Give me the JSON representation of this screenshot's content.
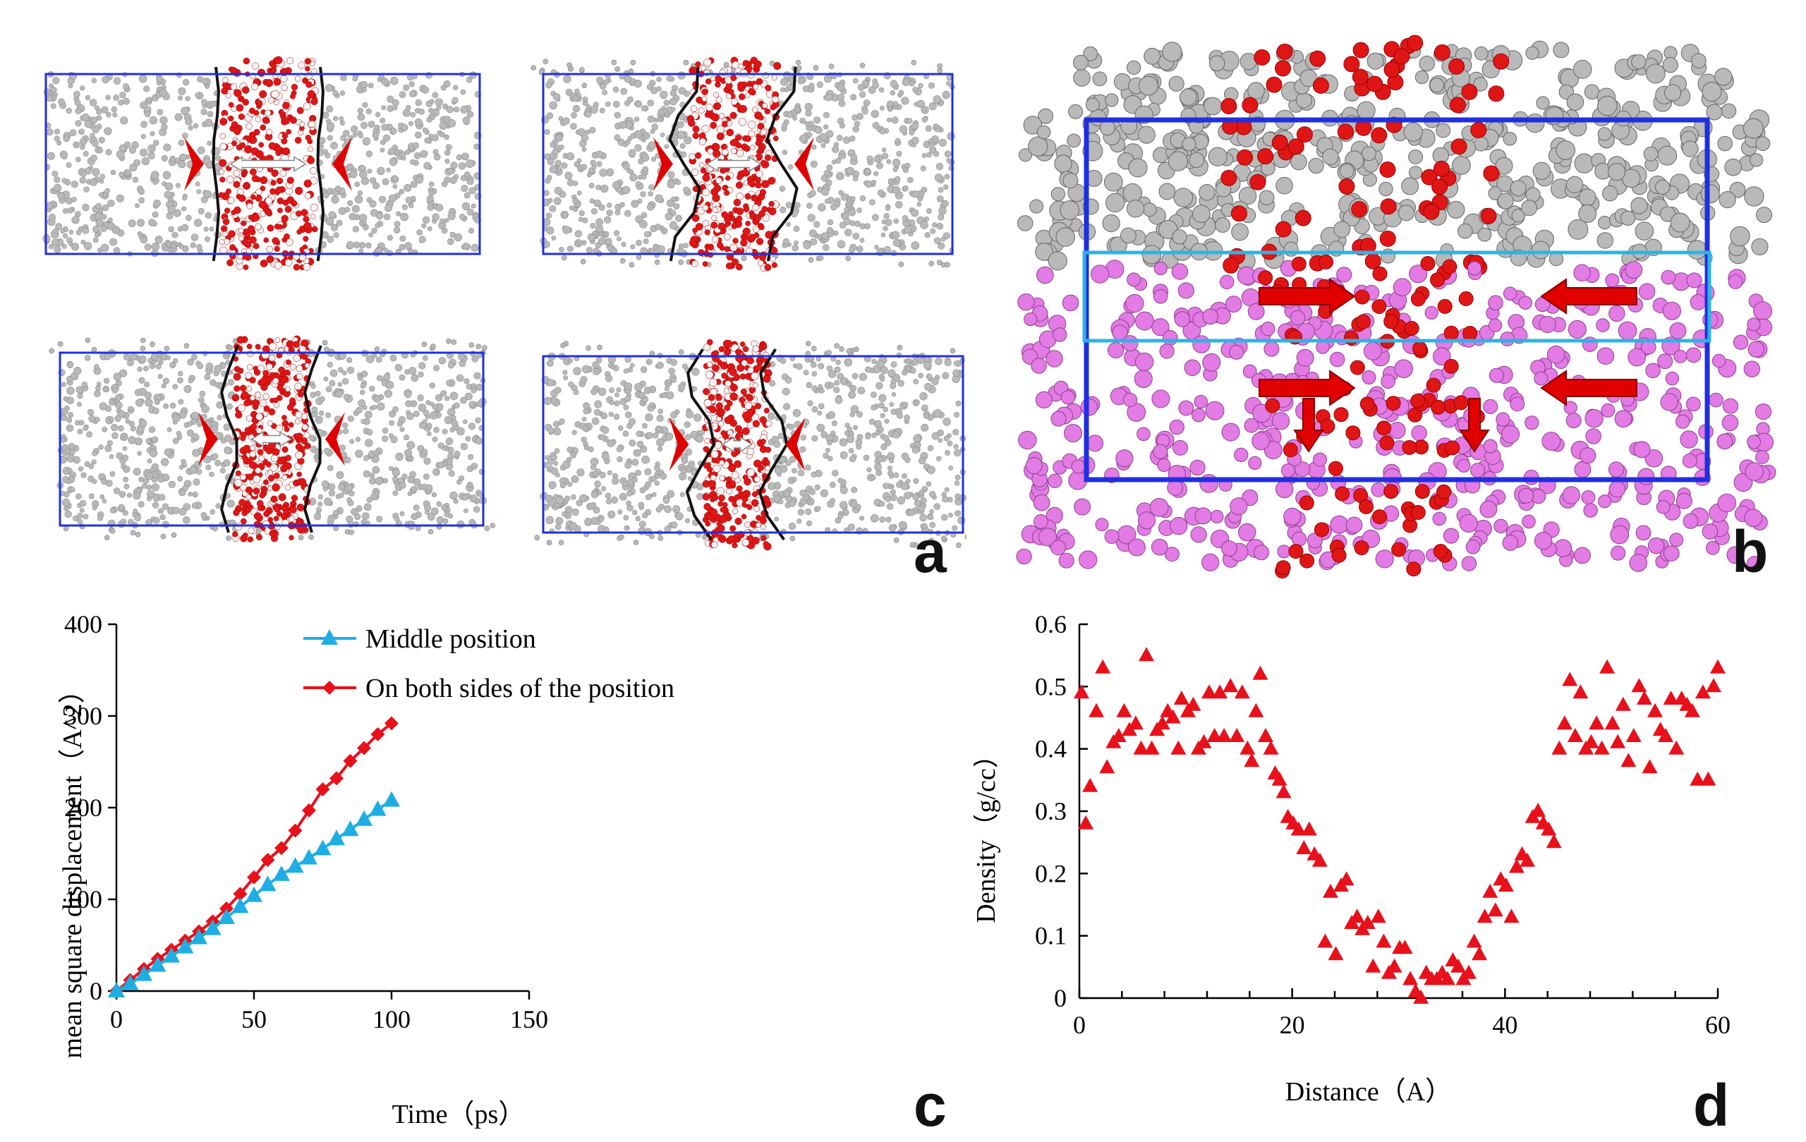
{
  "panels": {
    "a": {
      "label": "a"
    },
    "b": {
      "label": "b"
    },
    "c": {
      "label": "c"
    },
    "d": {
      "label": "d"
    }
  },
  "colors": {
    "box_blue": "#1f2fe0",
    "slab_cyan": "#2bb4e6",
    "atom_gray": "#b9b9b9",
    "atom_red": "#e01616",
    "atom_pink": "#e27be3",
    "arrow_red": "#e00000",
    "series_middle": "#1eaee3",
    "series_sides": "#e8101a"
  },
  "chart_data": [
    {
      "type": "line",
      "panel": "c",
      "xlabel": "Time（ps）",
      "ylabel": "mean square displacement（A^2）",
      "xlim": [
        0,
        150
      ],
      "ylim": [
        0,
        400
      ],
      "xticks": [
        0,
        50,
        100,
        150
      ],
      "yticks": [
        0,
        100,
        200,
        300,
        400
      ],
      "legend_position": "top-left",
      "series": [
        {
          "name": "Middle position",
          "marker": "triangle",
          "x": [
            0,
            5,
            10,
            15,
            20,
            25,
            30,
            35,
            40,
            45,
            50,
            55,
            60,
            65,
            70,
            75,
            80,
            85,
            90,
            95,
            100
          ],
          "y": [
            0,
            8,
            18,
            28,
            38,
            48,
            58,
            68,
            80,
            92,
            104,
            116,
            127,
            136,
            145,
            155,
            166,
            176,
            187,
            198,
            208
          ]
        },
        {
          "name": "On both sides of the position",
          "marker": "diamond",
          "x": [
            0,
            5,
            10,
            15,
            20,
            25,
            30,
            35,
            40,
            45,
            50,
            55,
            60,
            65,
            70,
            75,
            80,
            85,
            90,
            95,
            100
          ],
          "y": [
            0,
            12,
            24,
            35,
            45,
            55,
            65,
            76,
            90,
            106,
            124,
            143,
            156,
            175,
            197,
            220,
            232,
            251,
            265,
            280,
            292
          ]
        }
      ]
    },
    {
      "type": "scatter",
      "panel": "d",
      "xlabel": "Distance（A）",
      "ylabel": "Density（g/cc）",
      "xlim": [
        0,
        60
      ],
      "ylim": [
        0,
        0.6
      ],
      "xticks": [
        0,
        20,
        40,
        60
      ],
      "yticks": [
        0,
        0.1,
        0.2,
        0.3,
        0.4,
        0.5,
        0.6
      ],
      "points": [
        [
          0.2,
          0.49
        ],
        [
          0.6,
          0.28
        ],
        [
          1.0,
          0.34
        ],
        [
          1.6,
          0.46
        ],
        [
          2.2,
          0.53
        ],
        [
          2.6,
          0.37
        ],
        [
          3.2,
          0.41
        ],
        [
          3.7,
          0.42
        ],
        [
          4.2,
          0.46
        ],
        [
          4.7,
          0.43
        ],
        [
          5.3,
          0.44
        ],
        [
          5.8,
          0.4
        ],
        [
          6.3,
          0.55
        ],
        [
          6.8,
          0.4
        ],
        [
          7.3,
          0.43
        ],
        [
          7.8,
          0.44
        ],
        [
          8.3,
          0.46
        ],
        [
          8.8,
          0.45
        ],
        [
          9.3,
          0.4
        ],
        [
          9.6,
          0.48
        ],
        [
          10.2,
          0.46
        ],
        [
          10.7,
          0.47
        ],
        [
          11.2,
          0.4
        ],
        [
          11.7,
          0.41
        ],
        [
          12.2,
          0.49
        ],
        [
          12.7,
          0.42
        ],
        [
          13.2,
          0.49
        ],
        [
          13.6,
          0.42
        ],
        [
          14.2,
          0.5
        ],
        [
          14.8,
          0.42
        ],
        [
          15.3,
          0.49
        ],
        [
          15.8,
          0.4
        ],
        [
          16.2,
          0.38
        ],
        [
          16.6,
          0.46
        ],
        [
          17.0,
          0.52
        ],
        [
          17.5,
          0.42
        ],
        [
          18.0,
          0.4
        ],
        [
          18.4,
          0.36
        ],
        [
          18.8,
          0.35
        ],
        [
          19.2,
          0.33
        ],
        [
          19.6,
          0.29
        ],
        [
          20.1,
          0.28
        ],
        [
          20.6,
          0.27
        ],
        [
          21.1,
          0.24
        ],
        [
          21.6,
          0.27
        ],
        [
          22.1,
          0.23
        ],
        [
          22.6,
          0.22
        ],
        [
          23.1,
          0.09
        ],
        [
          23.6,
          0.17
        ],
        [
          24.1,
          0.07
        ],
        [
          24.6,
          0.18
        ],
        [
          25.1,
          0.19
        ],
        [
          25.6,
          0.12
        ],
        [
          26.1,
          0.13
        ],
        [
          26.6,
          0.11
        ],
        [
          27.1,
          0.12
        ],
        [
          27.6,
          0.05
        ],
        [
          28.1,
          0.13
        ],
        [
          28.6,
          0.09
        ],
        [
          29.1,
          0.04
        ],
        [
          29.6,
          0.05
        ],
        [
          30.1,
          0.08
        ],
        [
          30.6,
          0.08
        ],
        [
          31.1,
          0.03
        ],
        [
          31.6,
          0.01
        ],
        [
          32.1,
          0.0
        ],
        [
          32.6,
          0.04
        ],
        [
          33.1,
          0.03
        ],
        [
          33.6,
          0.03
        ],
        [
          34.1,
          0.04
        ],
        [
          34.6,
          0.03
        ],
        [
          35.1,
          0.06
        ],
        [
          35.6,
          0.05
        ],
        [
          36.1,
          0.03
        ],
        [
          36.6,
          0.04
        ],
        [
          37.1,
          0.09
        ],
        [
          37.6,
          0.07
        ],
        [
          38.1,
          0.13
        ],
        [
          38.6,
          0.17
        ],
        [
          39.1,
          0.14
        ],
        [
          39.6,
          0.19
        ],
        [
          40.1,
          0.18
        ],
        [
          40.6,
          0.13
        ],
        [
          41.1,
          0.21
        ],
        [
          41.6,
          0.23
        ],
        [
          42.1,
          0.22
        ],
        [
          42.6,
          0.29
        ],
        [
          43.1,
          0.3
        ],
        [
          43.6,
          0.28
        ],
        [
          44.1,
          0.27
        ],
        [
          44.6,
          0.25
        ],
        [
          45.1,
          0.4
        ],
        [
          45.6,
          0.44
        ],
        [
          46.1,
          0.51
        ],
        [
          46.6,
          0.42
        ],
        [
          47.1,
          0.49
        ],
        [
          47.6,
          0.4
        ],
        [
          48.1,
          0.41
        ],
        [
          48.6,
          0.44
        ],
        [
          49.1,
          0.4
        ],
        [
          49.6,
          0.53
        ],
        [
          50.1,
          0.44
        ],
        [
          50.6,
          0.41
        ],
        [
          51.1,
          0.47
        ],
        [
          51.6,
          0.38
        ],
        [
          52.1,
          0.42
        ],
        [
          52.6,
          0.5
        ],
        [
          53.1,
          0.48
        ],
        [
          53.6,
          0.37
        ],
        [
          54.1,
          0.46
        ],
        [
          54.6,
          0.43
        ],
        [
          55.1,
          0.42
        ],
        [
          55.6,
          0.48
        ],
        [
          56.1,
          0.4
        ],
        [
          56.6,
          0.48
        ],
        [
          57.1,
          0.47
        ],
        [
          57.6,
          0.46
        ],
        [
          58.1,
          0.35
        ],
        [
          58.6,
          0.49
        ],
        [
          59.1,
          0.35
        ],
        [
          59.6,
          0.5
        ],
        [
          60.0,
          0.53
        ]
      ]
    }
  ]
}
